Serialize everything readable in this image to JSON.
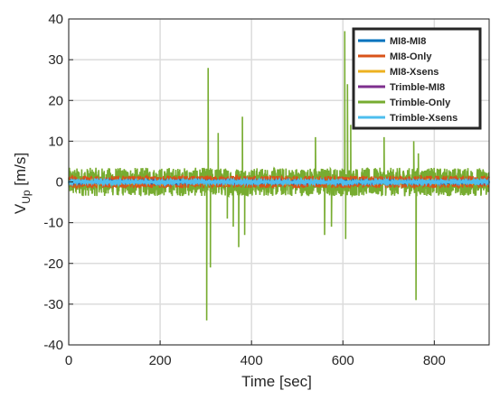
{
  "chart_data": {
    "type": "line",
    "title": "",
    "xlabel": "Time [sec]",
    "ylabel_main": "V",
    "ylabel_sub": "Up",
    "ylabel_unit": " [m/s]",
    "xlim": [
      0,
      920
    ],
    "ylim": [
      -40,
      40
    ],
    "xticks": [
      0,
      200,
      400,
      600,
      800
    ],
    "yticks": [
      -40,
      -30,
      -20,
      -10,
      0,
      10,
      20,
      30,
      40
    ],
    "grid": true,
    "legend_position": "top-right",
    "noise_amplitude": {
      "MI8-MI8": 0.3,
      "MI8-Only": 1.5,
      "MI8-Xsens": 0.5,
      "Trimble-MI8": 0.3,
      "Trimble-Only": 3.5,
      "Trimble-Xsens": 0.25
    },
    "series": [
      {
        "name": "MI8-MI8",
        "color": "#0072BD"
      },
      {
        "name": "MI8-Only",
        "color": "#D95319"
      },
      {
        "name": "MI8-Xsens",
        "color": "#EDB120"
      },
      {
        "name": "Trimble-MI8",
        "color": "#7E2F8E"
      },
      {
        "name": "Trimble-Only",
        "color": "#77AC30",
        "spikes": [
          {
            "x": 302,
            "y": -34
          },
          {
            "x": 305,
            "y": 28
          },
          {
            "x": 310,
            "y": -21
          },
          {
            "x": 327,
            "y": 12
          },
          {
            "x": 347,
            "y": -9
          },
          {
            "x": 360,
            "y": -11
          },
          {
            "x": 372,
            "y": -16
          },
          {
            "x": 380,
            "y": 16
          },
          {
            "x": 385,
            "y": -13
          },
          {
            "x": 540,
            "y": 11
          },
          {
            "x": 560,
            "y": -13
          },
          {
            "x": 575,
            "y": -11
          },
          {
            "x": 604,
            "y": 37
          },
          {
            "x": 606,
            "y": -14
          },
          {
            "x": 610,
            "y": 24
          },
          {
            "x": 617,
            "y": 14
          },
          {
            "x": 690,
            "y": 11
          },
          {
            "x": 755,
            "y": 10
          },
          {
            "x": 760,
            "y": -29
          },
          {
            "x": 765,
            "y": 7
          }
        ]
      },
      {
        "name": "Trimble-Xsens",
        "color": "#4DBEEE"
      }
    ]
  }
}
